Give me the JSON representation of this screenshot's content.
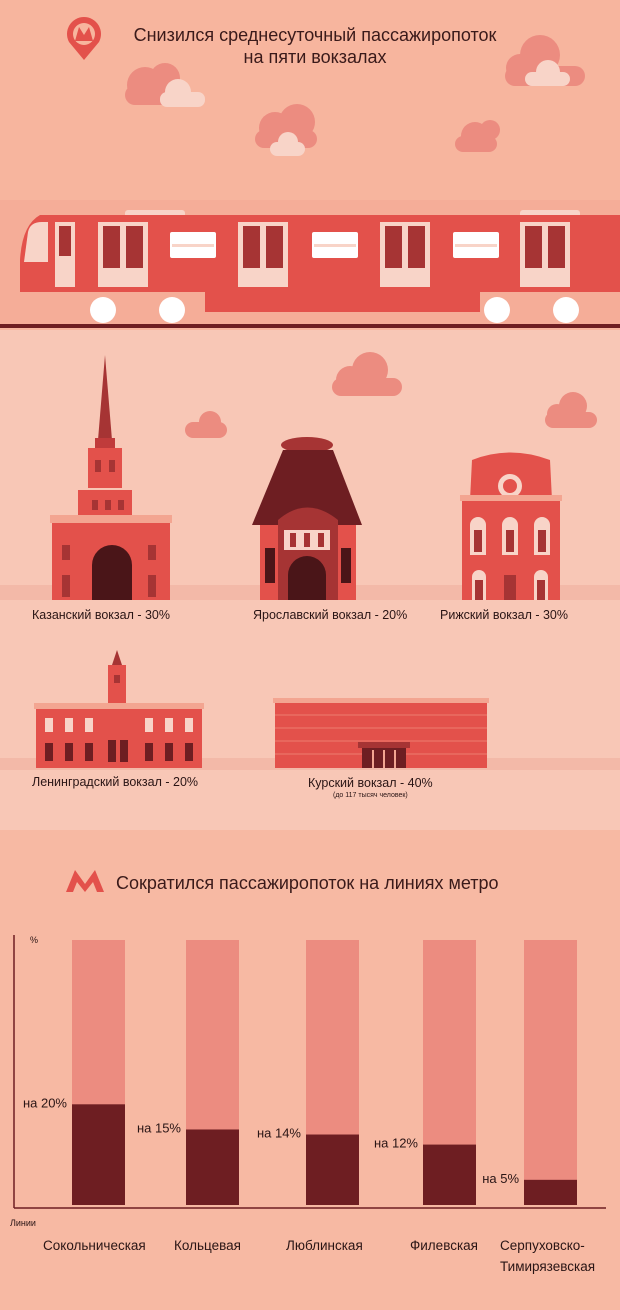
{
  "header": {
    "title_line1": "Снизился среднесуточный пассажиропоток",
    "title_line2": "на пяти вокзалах"
  },
  "stations": [
    {
      "label": "Казанский вокзал - 30%"
    },
    {
      "label": "Ярославский вокзал - 20%"
    },
    {
      "label": "Рижский вокзал - 30%"
    },
    {
      "label": "Ленинградский вокзал - 20%"
    },
    {
      "label": "Курский вокзал - 40%",
      "note": "(до 117 тысяч человек)"
    }
  ],
  "metro_section": {
    "title": "Сократился пассажиропоток на линиях метро"
  },
  "colors": {
    "background_top": "#f7b59e",
    "background_mid": "#f8c7b6",
    "bar_back": "#ec8c80",
    "bar_value": "#6e1e22",
    "accent": "#e3514b"
  },
  "chart_data": {
    "type": "bar",
    "title": "Сократился пассажиропоток на линиях метро",
    "xlabel": "Линии",
    "ylabel": "%",
    "ylim": [
      0,
      100
    ],
    "categories": [
      "Сокольническая",
      "Кольцевая",
      "Люблинская",
      "Филевская",
      "Серпуховско-Тимирязевская"
    ],
    "category_lines": [
      [
        "Сокольническая"
      ],
      [
        "Кольцевая"
      ],
      [
        "Люблинская"
      ],
      [
        "Филевская"
      ],
      [
        "Серпуховско-",
        "Тимирязевская"
      ]
    ],
    "values": [
      20,
      15,
      14,
      12,
      5
    ],
    "value_labels": [
      "на 20%",
      "на 15%",
      "на 14%",
      "на 12%",
      "на 5%"
    ]
  }
}
